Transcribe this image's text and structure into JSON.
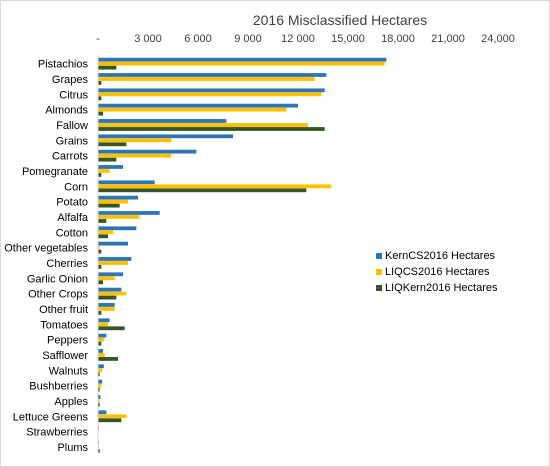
{
  "chart_data": {
    "type": "bar",
    "orientation": "horizontal",
    "title": "2016 Misclassified Hectares",
    "xlabel": "",
    "ylabel": "",
    "xlim": [
      0,
      24000
    ],
    "x_ticks": [
      "-",
      "3 000",
      "6 000",
      "9 000",
      "12 000",
      "15,000",
      "18,000",
      "21,000",
      "24,000"
    ],
    "x_tick_values": [
      0,
      3000,
      6000,
      9000,
      12000,
      15000,
      18000,
      21000,
      24000
    ],
    "axis_position": "top",
    "grid": false,
    "legend_position": "right",
    "categories": [
      "Pistachios",
      "Grapes",
      "Citrus",
      "Almonds",
      "Fallow",
      "Grains",
      "Carrots",
      "Pomegranate",
      "Corn",
      "Potato",
      "Alfalfa",
      "Cotton",
      "Other vegetables",
      "Cherries",
      "Garlic Onion",
      "Other Crops",
      "Other fruit",
      "Tomatoes",
      "Peppers",
      "Safflower",
      "Walnuts",
      "Bushberries",
      "Apples",
      "Lettuce Greens",
      "Strawberries",
      "Plums"
    ],
    "series": [
      {
        "name": "KernCS2016 Hectares",
        "color": "#2e75b6",
        "values": [
          17300,
          13700,
          13600,
          12000,
          7700,
          8100,
          5900,
          1500,
          3400,
          2400,
          3700,
          2300,
          1800,
          2000,
          1500,
          1400,
          1000,
          700,
          500,
          300,
          350,
          250,
          150,
          500,
          50,
          50
        ]
      },
      {
        "name": "LIQCS2016 Hectares",
        "color": "#ffc000",
        "values": [
          17200,
          13000,
          13400,
          11300,
          12600,
          4400,
          4400,
          700,
          14000,
          1800,
          2500,
          900,
          100,
          1800,
          1000,
          1700,
          1000,
          600,
          350,
          400,
          250,
          200,
          100,
          1700,
          0,
          0
        ]
      },
      {
        "name": "LIQKern2016 Hectares",
        "color": "#375623",
        "values": [
          1100,
          200,
          200,
          300,
          13600,
          1700,
          1100,
          200,
          12500,
          1300,
          500,
          600,
          200,
          200,
          300,
          1100,
          200,
          1600,
          200,
          1200,
          100,
          100,
          100,
          1400,
          0,
          100
        ]
      }
    ]
  }
}
